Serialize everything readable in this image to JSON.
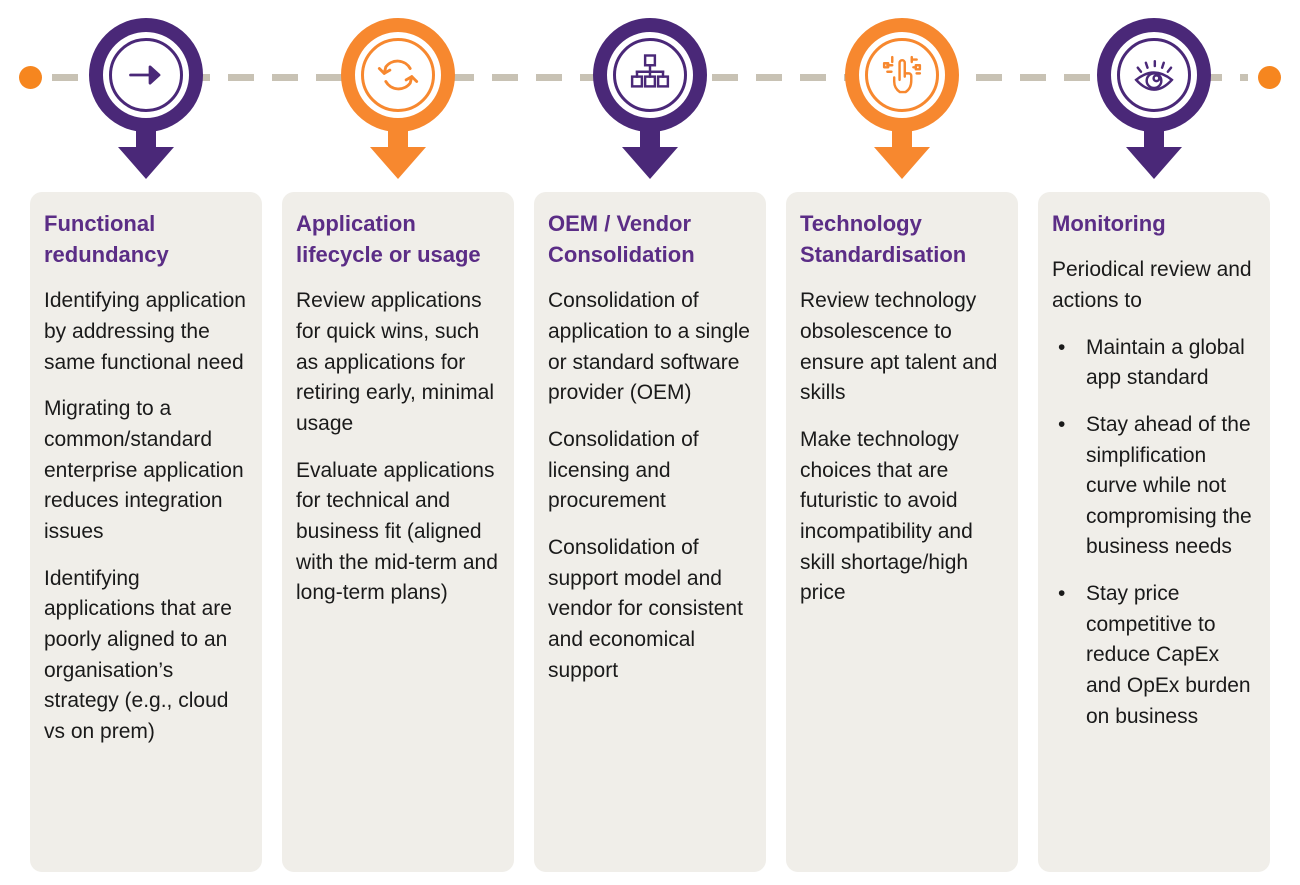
{
  "colors": {
    "purple": "#4A2878",
    "orange": "#F7882F",
    "title_purple": "#5B2D86",
    "dash": "#C8C2B4",
    "end_dot": "#F6861F",
    "card_bg": "#F0EEE9",
    "body_text": "#1A1A1A"
  },
  "bullet_char": "•",
  "timeline": {
    "steps": [
      {
        "icon": "arrow-right",
        "color": "#4A2878"
      },
      {
        "icon": "refresh",
        "color": "#F7882F"
      },
      {
        "icon": "hierarchy",
        "color": "#4A2878"
      },
      {
        "icon": "digital-touch",
        "color": "#F7882F"
      },
      {
        "icon": "eye",
        "color": "#4A2878"
      }
    ]
  },
  "cards": [
    {
      "title": "Functional redundancy",
      "paragraphs": [
        "Identifying application by addressing the same functional need",
        "Migrating to a common/standard enterprise application reduces integration issues",
        "Identifying applications that are poorly aligned to an organisation’s strategy (e.g., cloud vs on prem)"
      ],
      "bullets": []
    },
    {
      "title": "Application lifecycle or usage",
      "paragraphs": [
        "Review applications for quick wins, such as applications for retiring early, minimal usage",
        "Evaluate applications for technical and business fit (aligned with the mid-term and long-term plans)"
      ],
      "bullets": []
    },
    {
      "title": "OEM / Vendor Consolidation",
      "paragraphs": [
        "Consolidation of application to a single or standard software provider (OEM)",
        "Consolidation of licensing and procurement",
        "Consolidation of support model and vendor for consistent and economical support"
      ],
      "bullets": []
    },
    {
      "title": "Technology Standardisation",
      "paragraphs": [
        "Review technology obsolescence to ensure apt talent and skills",
        "Make technology choices that are futuristic to avoid incompatibility and skill shortage/high price"
      ],
      "bullets": []
    },
    {
      "title": "Monitoring",
      "paragraphs": [
        "Periodical review and actions to"
      ],
      "bullets": [
        "Maintain a global app standard",
        "Stay ahead of the simplification curve while not compromising the business needs",
        "Stay price competitive to reduce CapEx and OpEx burden on business"
      ]
    }
  ]
}
